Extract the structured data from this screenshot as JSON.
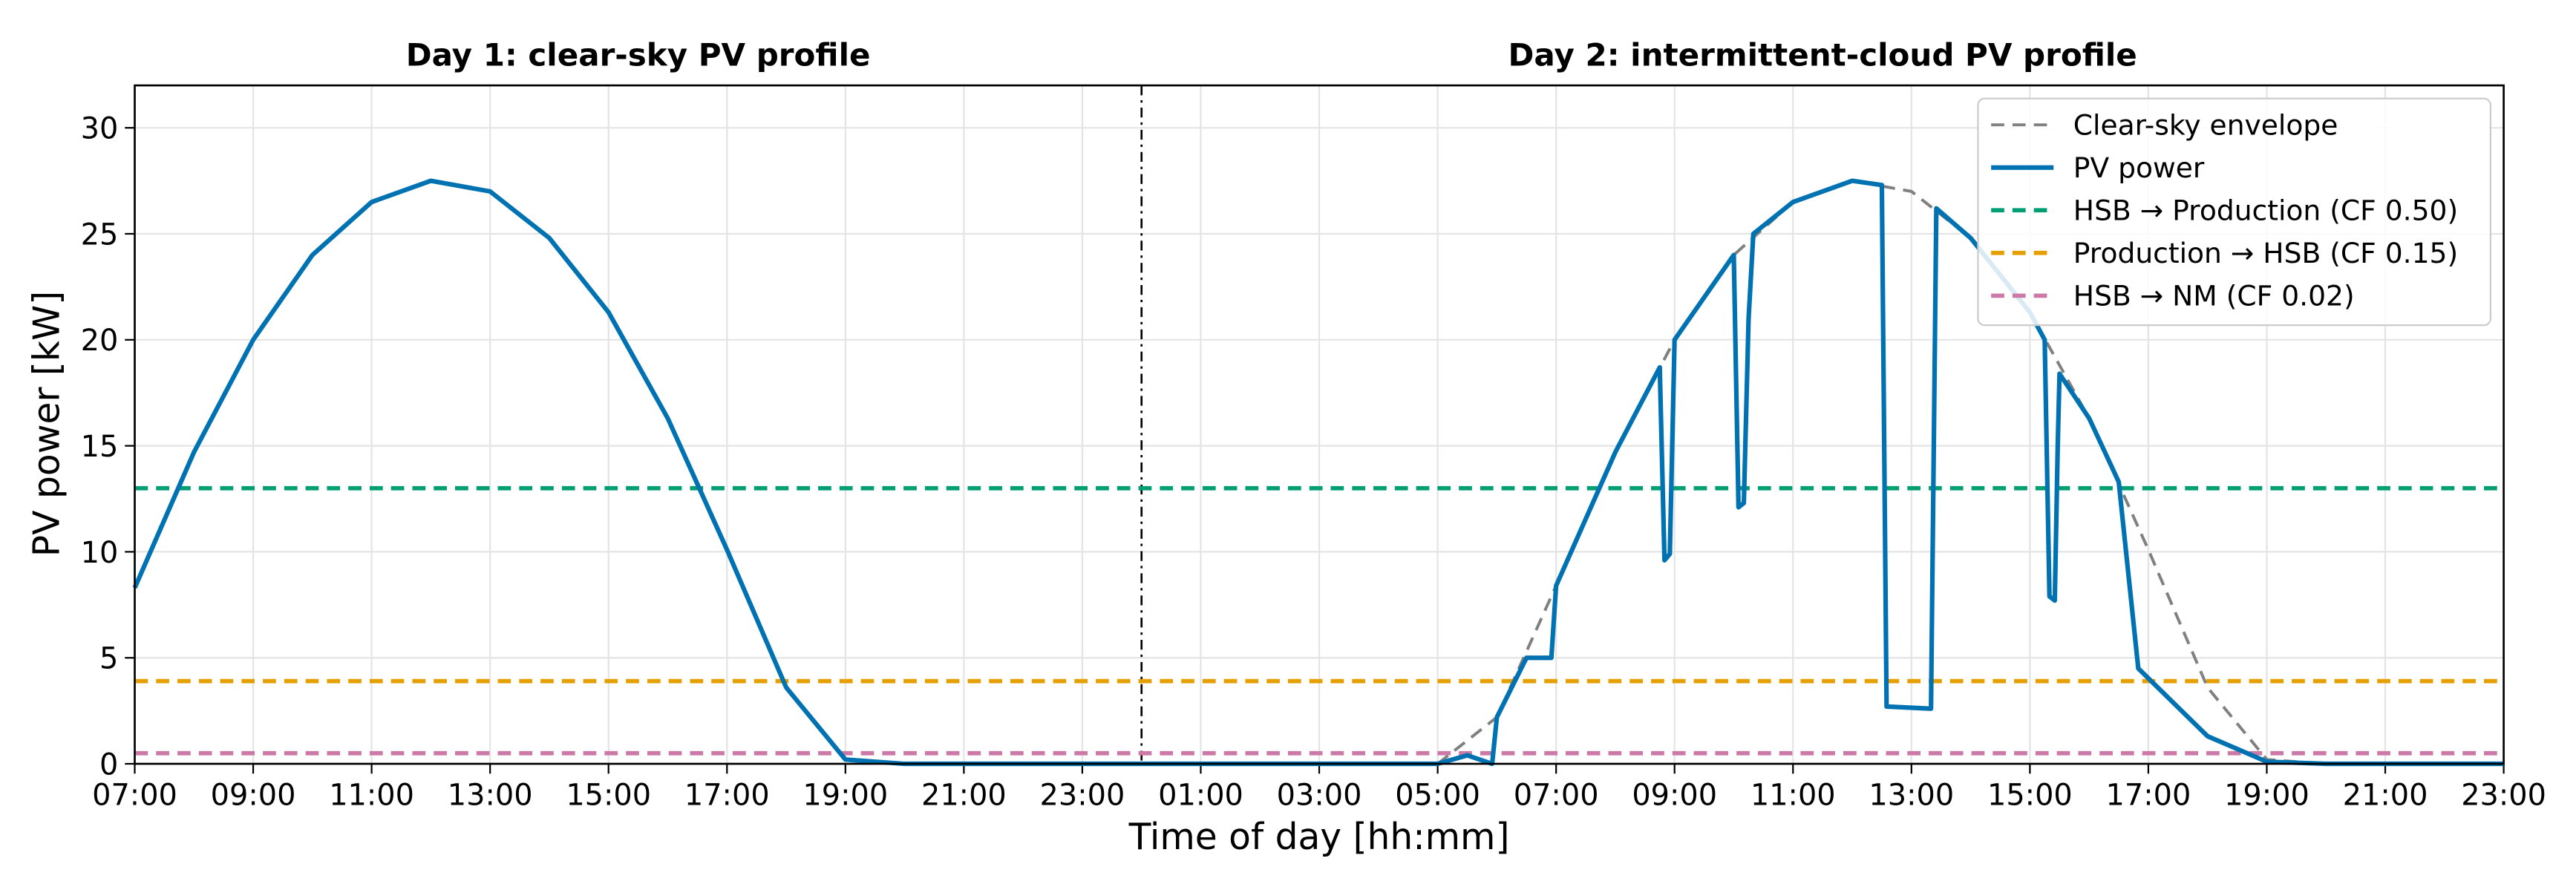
{
  "chart_data": {
    "type": "line",
    "titles": [
      "Day 1: clear-sky PV profile",
      "Day 2: intermittent-cloud PV profile"
    ],
    "xlabel": "Time of day [hh:mm]",
    "ylabel": "PV power [kW]",
    "xlim": [
      7,
      47
    ],
    "ylim": [
      0,
      32
    ],
    "xticks": [
      {
        "value": 7,
        "label": "07:00"
      },
      {
        "value": 9,
        "label": "09:00"
      },
      {
        "value": 11,
        "label": "11:00"
      },
      {
        "value": 13,
        "label": "13:00"
      },
      {
        "value": 15,
        "label": "15:00"
      },
      {
        "value": 17,
        "label": "17:00"
      },
      {
        "value": 19,
        "label": "19:00"
      },
      {
        "value": 21,
        "label": "21:00"
      },
      {
        "value": 23,
        "label": "23:00"
      },
      {
        "value": 25,
        "label": "01:00"
      },
      {
        "value": 27,
        "label": "03:00"
      },
      {
        "value": 29,
        "label": "05:00"
      },
      {
        "value": 31,
        "label": "07:00"
      },
      {
        "value": 33,
        "label": "09:00"
      },
      {
        "value": 35,
        "label": "11:00"
      },
      {
        "value": 37,
        "label": "13:00"
      },
      {
        "value": 39,
        "label": "15:00"
      },
      {
        "value": 41,
        "label": "17:00"
      },
      {
        "value": 43,
        "label": "19:00"
      },
      {
        "value": 45,
        "label": "21:00"
      },
      {
        "value": 47,
        "label": "23:00"
      }
    ],
    "yticks": [
      0,
      5,
      10,
      15,
      20,
      25,
      30
    ],
    "grid": true,
    "day_divider": 24,
    "legend": "upper-right",
    "series": [
      {
        "name": "Clear-sky envelope",
        "color": "#808080",
        "linestyle": "dashed",
        "x": [
          29,
          30,
          31,
          32,
          33,
          34,
          35,
          36,
          37,
          38,
          39,
          40,
          41,
          42,
          43,
          44,
          45,
          46,
          47
        ],
        "values": [
          0,
          2.2,
          8.4,
          14.7,
          20,
          24,
          26.5,
          27.5,
          27,
          24.8,
          21.3,
          16.3,
          10.1,
          3.6,
          0.2,
          0,
          0,
          0,
          0
        ]
      },
      {
        "name": "PV power",
        "color": "#0072b2",
        "linestyle": "solid",
        "x": [
          7,
          8,
          9,
          10,
          11,
          12,
          13,
          14,
          15,
          16,
          17,
          18,
          19,
          20,
          21,
          22,
          23,
          24,
          25,
          26,
          27,
          28,
          29,
          29.5,
          29.92,
          30,
          30.5,
          30.92,
          31,
          32,
          32.75,
          32.83,
          32.92,
          33,
          34,
          34.08,
          34.17,
          34.25,
          34.33,
          35,
          36,
          36.5,
          36.58,
          37.33,
          37.42,
          38,
          39,
          39.25,
          39.33,
          39.42,
          39.47,
          39.5,
          40,
          40.5,
          40.83,
          42,
          43,
          44,
          45,
          46,
          47
        ],
        "values": [
          8.3,
          14.7,
          20,
          24,
          26.5,
          27.5,
          27,
          24.8,
          21.3,
          16.3,
          10.1,
          3.6,
          0.2,
          0,
          0,
          0,
          0,
          0,
          0,
          0,
          0,
          0,
          0,
          0.4,
          0,
          2.2,
          5,
          5,
          8.4,
          14.7,
          18.7,
          9.6,
          9.9,
          20,
          24,
          12.1,
          12.3,
          21,
          25,
          26.5,
          27.5,
          27.3,
          2.7,
          2.6,
          26.2,
          24.8,
          21.3,
          20,
          7.9,
          7.7,
          15,
          18.4,
          16.3,
          13.3,
          4.5,
          1.3,
          0.1,
          0,
          0,
          0,
          0
        ]
      }
    ],
    "hlines": [
      {
        "name": "HSB → Production (CF 0.50)",
        "color": "#009e73",
        "linestyle": "dashed",
        "value": 13
      },
      {
        "name": "Production → HSB (CF 0.15)",
        "color": "#e69f00",
        "linestyle": "dashed",
        "value": 3.9
      },
      {
        "name": "HSB → NM (CF 0.02)",
        "color": "#cc79a7",
        "linestyle": "dashed",
        "value": 0.5
      }
    ]
  }
}
